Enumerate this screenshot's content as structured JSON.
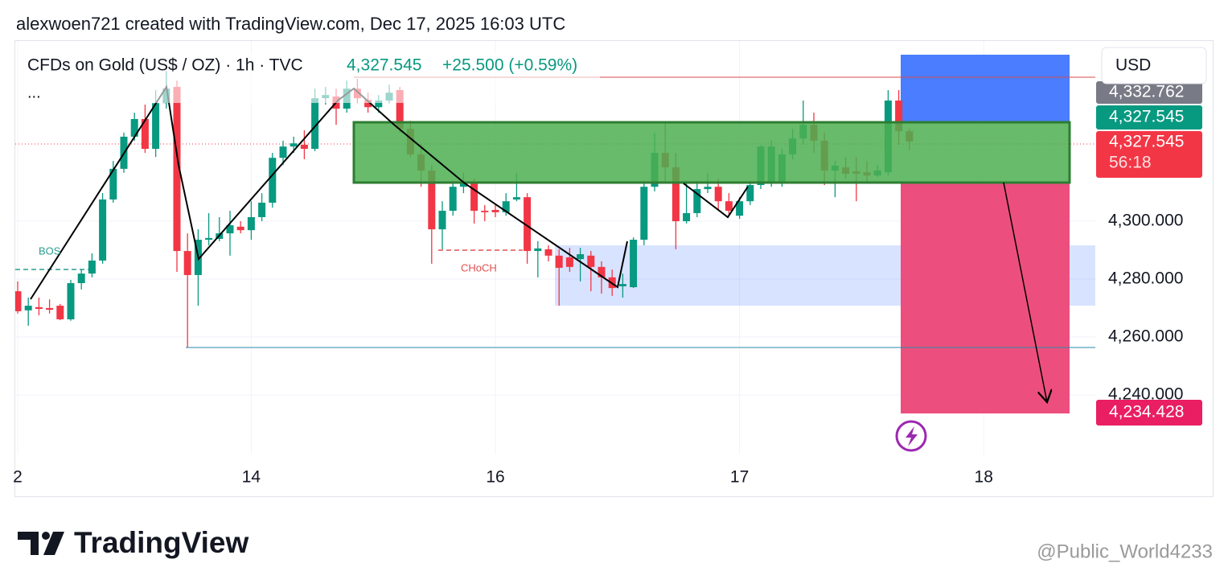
{
  "header": "alexwoen721 created with TradingView.com, Dec 17, 2025 16:03 UTC",
  "chart_data": {
    "type": "candlestick",
    "title": "CFDs on Gold (US$ / OZ) · 1h · TVC",
    "last": "4,327.545",
    "change": "+25.500 (+0.59%)",
    "more": "...",
    "currency": "USD",
    "countdown": "56:18",
    "annotations": [
      "BOS",
      "CHoCH"
    ],
    "up_color": "#089981",
    "down_color": "#f23645",
    "grid": true,
    "categories": [
      "2",
      null,
      null,
      null,
      null,
      null,
      null,
      null,
      null,
      null,
      null,
      null,
      null,
      null,
      null,
      null,
      null,
      null,
      null,
      null,
      null,
      null,
      "14",
      null,
      null,
      null,
      null,
      null,
      null,
      null,
      null,
      null,
      null,
      null,
      null,
      null,
      null,
      null,
      null,
      null,
      null,
      null,
      null,
      null,
      null,
      "16",
      null,
      null,
      null,
      null,
      null,
      null,
      null,
      null,
      null,
      null,
      null,
      null,
      null,
      null,
      null,
      null,
      null,
      null,
      null,
      null,
      null,
      null,
      "17",
      null,
      null,
      null,
      null,
      null,
      null,
      null,
      null,
      null,
      null,
      null,
      null,
      null,
      null,
      null,
      null,
      null,
      null,
      null,
      null,
      null,
      null,
      "18"
    ],
    "open": [
      4275.8,
      4269.2,
      4270.3,
      4270.0,
      4270.8,
      4266.1,
      4278.6,
      4281.9,
      4286.4,
      4307.5,
      4318.1,
      4329.2,
      4335.3,
      4325.0,
      4340.8,
      4346.4,
      4289.7,
      4281.4,
      4293.6,
      4293.9,
      4295.8,
      4298.1,
      4296.9,
      4301.4,
      4306.4,
      4321.9,
      4325.8,
      4326.4,
      4325.0,
      4342.5,
      4343.1,
      4338.9,
      4345.8,
      4341.9,
      4339.4,
      4341.7,
      4345.3,
      4331.9,
      4323.1,
      4317.5,
      4297.2,
      4303.6,
      4311.9,
      4313.1,
      4303.6,
      4303.9,
      4303.1,
      4307.5,
      4308.3,
      4289.7,
      4290.3,
      4288.1,
      4287.5,
      4286.9,
      4288.1,
      4284.2,
      4280.6,
      4277.5,
      4277.2,
      4293.6,
      4311.9,
      4323.6,
      4318.6,
      4300.0,
      4302.8,
      4311.1,
      4311.9,
      4306.9,
      4301.9,
      4306.9,
      4312.5,
      4313.1,
      4313.1,
      4323.1,
      4328.6,
      4333.3,
      4327.8,
      4317.5,
      4318.6,
      4317.2,
      4316.9,
      4315.8,
      4316.9,
      4341.7,
      4331.1,
      null,
      null,
      null,
      null,
      null,
      null,
      null
    ],
    "high": [
      4279.2,
      4273.6,
      4273.6,
      4273.0,
      4271.4,
      4279.7,
      4283.3,
      4288.9,
      4309.7,
      4320.8,
      4330.6,
      4337.5,
      4340.3,
      4345.3,
      4351.9,
      4348.6,
      4295.8,
      4297.2,
      4302.8,
      4301.4,
      4303.6,
      4300.0,
      4306.9,
      4309.7,
      4323.6,
      4327.8,
      4329.2,
      4331.4,
      4345.8,
      4346.4,
      4345.8,
      4348.6,
      4349.2,
      4344.4,
      4343.6,
      4347.2,
      4346.4,
      4334.7,
      4326.9,
      4319.4,
      4306.9,
      4313.9,
      4316.7,
      4314.7,
      4305.6,
      4305.6,
      4309.7,
      4316.7,
      4309.7,
      4293.1,
      4291.7,
      4290.3,
      4290.8,
      4290.8,
      4289.7,
      4286.1,
      4283.3,
      4281.9,
      4294.4,
      4313.9,
      4330.6,
      4334.2,
      4323.6,
      4313.9,
      4313.9,
      4316.7,
      4314.7,
      4309.7,
      4308.3,
      4313.9,
      4326.4,
      4327.8,
      4325.0,
      4331.9,
      4341.7,
      4337.5,
      4330.6,
      4320.8,
      4322.2,
      4322.2,
      4320.8,
      4319.4,
      4345.3,
      4345.3,
      4332.0,
      null,
      null,
      null,
      null,
      null,
      null,
      null
    ],
    "low": [
      4268.1,
      4263.9,
      4267.5,
      4268.1,
      4265.8,
      4265.6,
      4276.4,
      4280.6,
      4285.3,
      4306.4,
      4316.7,
      4327.8,
      4323.6,
      4322.2,
      4338.9,
      4282.5,
      4256.4,
      4270.8,
      4291.7,
      4293.1,
      4288.1,
      4295.8,
      4293.6,
      4300.0,
      4304.7,
      4319.4,
      4323.6,
      4321.4,
      4324.2,
      4340.3,
      4333.3,
      4337.5,
      4340.8,
      4337.5,
      4337.5,
      4340.8,
      4330.6,
      4322.2,
      4311.9,
      4285.3,
      4290.3,
      4301.9,
      4309.7,
      4299.2,
      4300.0,
      4301.4,
      4301.9,
      4306.9,
      4285.3,
      4280.6,
      4286.1,
      4270.8,
      4282.5,
      4279.2,
      4275.8,
      4275.0,
      4274.2,
      4273.6,
      4276.9,
      4291.7,
      4310.3,
      4313.9,
      4290.3,
      4299.2,
      4301.4,
      4309.7,
      4303.6,
      4301.9,
      4300.8,
      4305.6,
      4311.1,
      4311.9,
      4311.9,
      4321.4,
      4326.4,
      4323.6,
      4312.5,
      4308.3,
      4314.7,
      4306.9,
      4313.6,
      4315.3,
      4315.8,
      4326.4,
      4324.4,
      null,
      null,
      null,
      null,
      null,
      null,
      null
    ],
    "close": [
      4268.9,
      4270.8,
      4269.7,
      4269.4,
      4266.1,
      4278.6,
      4281.9,
      4286.4,
      4307.5,
      4318.1,
      4329.2,
      4335.3,
      4325.0,
      4340.8,
      4345.8,
      4289.7,
      4281.4,
      4293.6,
      4294.2,
      4295.8,
      4298.6,
      4296.9,
      4301.4,
      4306.4,
      4321.9,
      4325.8,
      4326.9,
      4325.0,
      4342.5,
      4343.6,
      4338.9,
      4345.8,
      4342.5,
      4339.4,
      4341.7,
      4344.4,
      4331.9,
      4323.1,
      4317.5,
      4297.2,
      4303.6,
      4311.9,
      4313.1,
      4303.6,
      4303.1,
      4303.1,
      4306.9,
      4308.3,
      4289.7,
      4290.6,
      4288.1,
      4283.9,
      4284.2,
      4288.6,
      4284.2,
      4280.6,
      4276.9,
      4278.3,
      4293.6,
      4311.9,
      4323.6,
      4318.6,
      4300.0,
      4302.8,
      4311.1,
      4311.9,
      4306.9,
      4303.6,
      4306.9,
      4312.5,
      4325.8,
      4325.8,
      4323.1,
      4328.6,
      4333.3,
      4327.8,
      4317.5,
      4319.2,
      4316.4,
      4316.4,
      4315.8,
      4317.5,
      4341.7,
      4331.1,
      4327.545,
      null,
      null,
      null,
      null,
      null,
      null,
      null
    ],
    "ylim": [
      4219.4,
      4359.2
    ],
    "yticks": [
      {
        "value": 4240,
        "label": "4,240.000"
      },
      {
        "value": 4260,
        "label": "4,260.000"
      },
      {
        "value": 4280,
        "label": "4,280.000"
      },
      {
        "value": 4300,
        "label": "4,300.000"
      }
    ],
    "price_labels": [
      {
        "value": 4332.762,
        "label": "4,332.762"
      },
      {
        "value": 4327.545,
        "label": "4,327.545"
      },
      {
        "value": 4327.545,
        "label": "4,327.545"
      },
      {
        "value": 4234.428,
        "label": "4,234.428"
      }
    ]
  },
  "footer": {
    "logo": "TradingView",
    "watermark": "@Public_World4233"
  }
}
